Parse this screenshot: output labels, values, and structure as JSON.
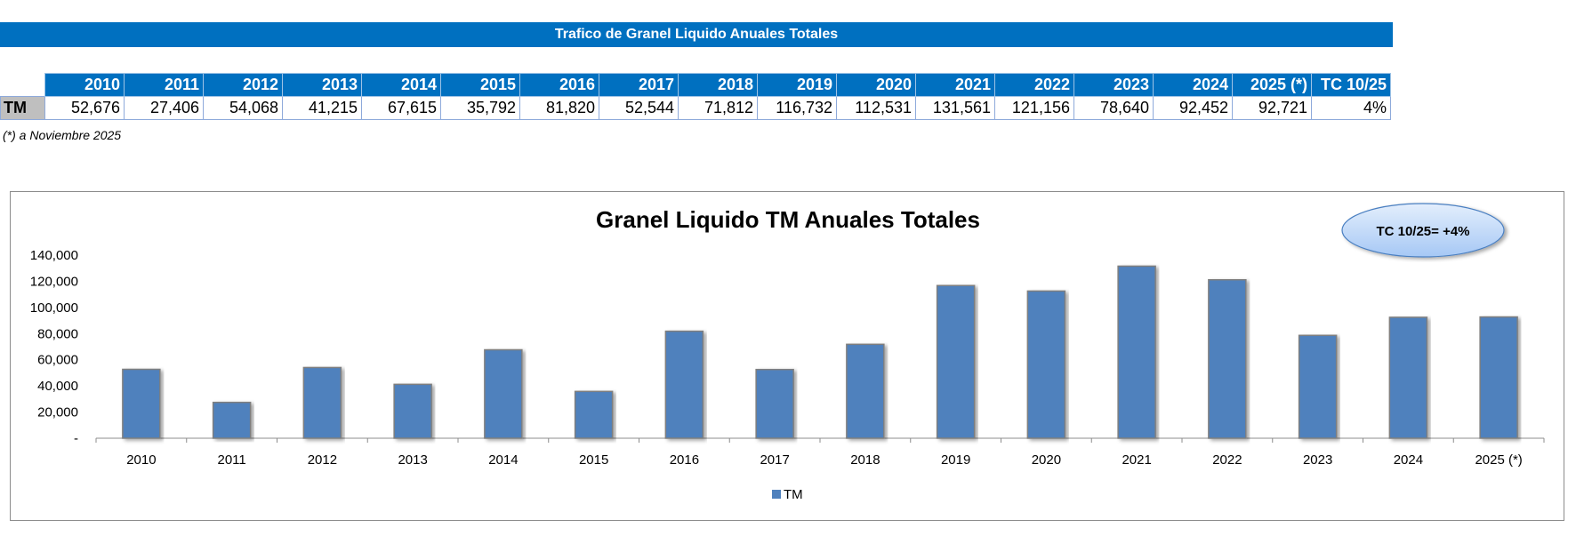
{
  "header": {
    "title": "Trafico de Granel Liquido Anuales Totales"
  },
  "table": {
    "columns": [
      "2010",
      "2011",
      "2012",
      "2013",
      "2014",
      "2015",
      "2016",
      "2017",
      "2018",
      "2019",
      "2020",
      "2021",
      "2022",
      "2023",
      "2024",
      "2025 (*)",
      "TC 10/25"
    ],
    "row_label": "TM",
    "values": [
      "52,676",
      "27,406",
      "54,068",
      "41,215",
      "67,615",
      "35,792",
      "81,820",
      "52,544",
      "71,812",
      "116,732",
      "112,531",
      "131,561",
      "121,156",
      "78,640",
      "92,452",
      "92,721",
      "4%"
    ]
  },
  "note": "(*) a Noviembre 2025",
  "chart_data": {
    "type": "bar",
    "title": "Granel Liquido TM Anuales Totales",
    "categories": [
      "2010",
      "2011",
      "2012",
      "2013",
      "2014",
      "2015",
      "2016",
      "2017",
      "2018",
      "2019",
      "2020",
      "2021",
      "2022",
      "2023",
      "2024",
      "2025 (*)"
    ],
    "series": [
      {
        "name": "TM",
        "values": [
          52676,
          27406,
          54068,
          41215,
          67615,
          35792,
          81820,
          52544,
          71812,
          116732,
          112531,
          131561,
          121156,
          78640,
          92452,
          92721
        ]
      }
    ],
    "ylim": [
      0,
      140000
    ],
    "yticks": [
      0,
      20000,
      40000,
      60000,
      80000,
      100000,
      120000,
      140000
    ],
    "ytick_labels": [
      "-",
      "20,000",
      "40,000",
      "60,000",
      "80,000",
      "100,000",
      "120,000",
      "140,000"
    ],
    "legend": "bottom",
    "annotation": "TC 10/25= +4%",
    "colors": {
      "bar": "#4f81bd",
      "bar_border": "#7f7f7f"
    }
  }
}
